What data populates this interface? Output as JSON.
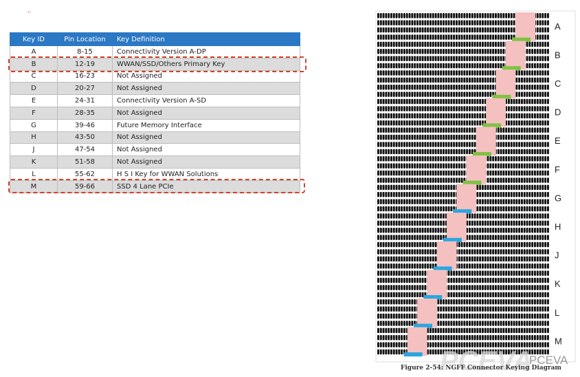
{
  "table": {
    "headers": [
      "Key ID",
      "Pin Location",
      "Key Definition"
    ],
    "rows": [
      {
        "id": "A",
        "pins": "8-15",
        "def": "Connectivity Version A-DP"
      },
      {
        "id": "B",
        "pins": "12-19",
        "def": "WWAN/SSD/Others Primary Key"
      },
      {
        "id": "C",
        "pins": "16-23",
        "def": "Not Assigned"
      },
      {
        "id": "D",
        "pins": "20-27",
        "def": "Not Assigned"
      },
      {
        "id": "E",
        "pins": "24-31",
        "def": "Connectivity Version A-SD"
      },
      {
        "id": "F",
        "pins": "28-35",
        "def": "Not Assigned"
      },
      {
        "id": "G",
        "pins": "39-46",
        "def": "Future Memory Interface"
      },
      {
        "id": "H",
        "pins": "43-50",
        "def": "Not Assigned"
      },
      {
        "id": "J",
        "pins": "47-54",
        "def": "Not Assigned"
      },
      {
        "id": "K",
        "pins": "51-58",
        "def": "Not Assigned"
      },
      {
        "id": "L",
        "pins": "55-62",
        "def": "H S I Key for WWAN Solutions"
      },
      {
        "id": "M",
        "pins": "59-66",
        "def": "SSD 4 Lane PCIe"
      }
    ],
    "highlighted_keys": [
      "B",
      "M"
    ]
  },
  "diagram": {
    "key_labels": [
      "A",
      "B",
      "C",
      "D",
      "E",
      "F",
      "G",
      "H",
      "J",
      "K",
      "L",
      "M"
    ],
    "caption": "Figure 2-54: NGFF Connector Keying Diagram",
    "colors": {
      "pin": "#111111",
      "key": "#f4c0c0",
      "green": "#7fc241",
      "blue": "#2aa6e0"
    }
  },
  "watermark": {
    "logo": "PCEVA",
    "site": "PCEVA"
  },
  "colors": {
    "header": "#2b78c4",
    "alt_row": "#dcdcdc",
    "highlight": "#d0402a"
  }
}
